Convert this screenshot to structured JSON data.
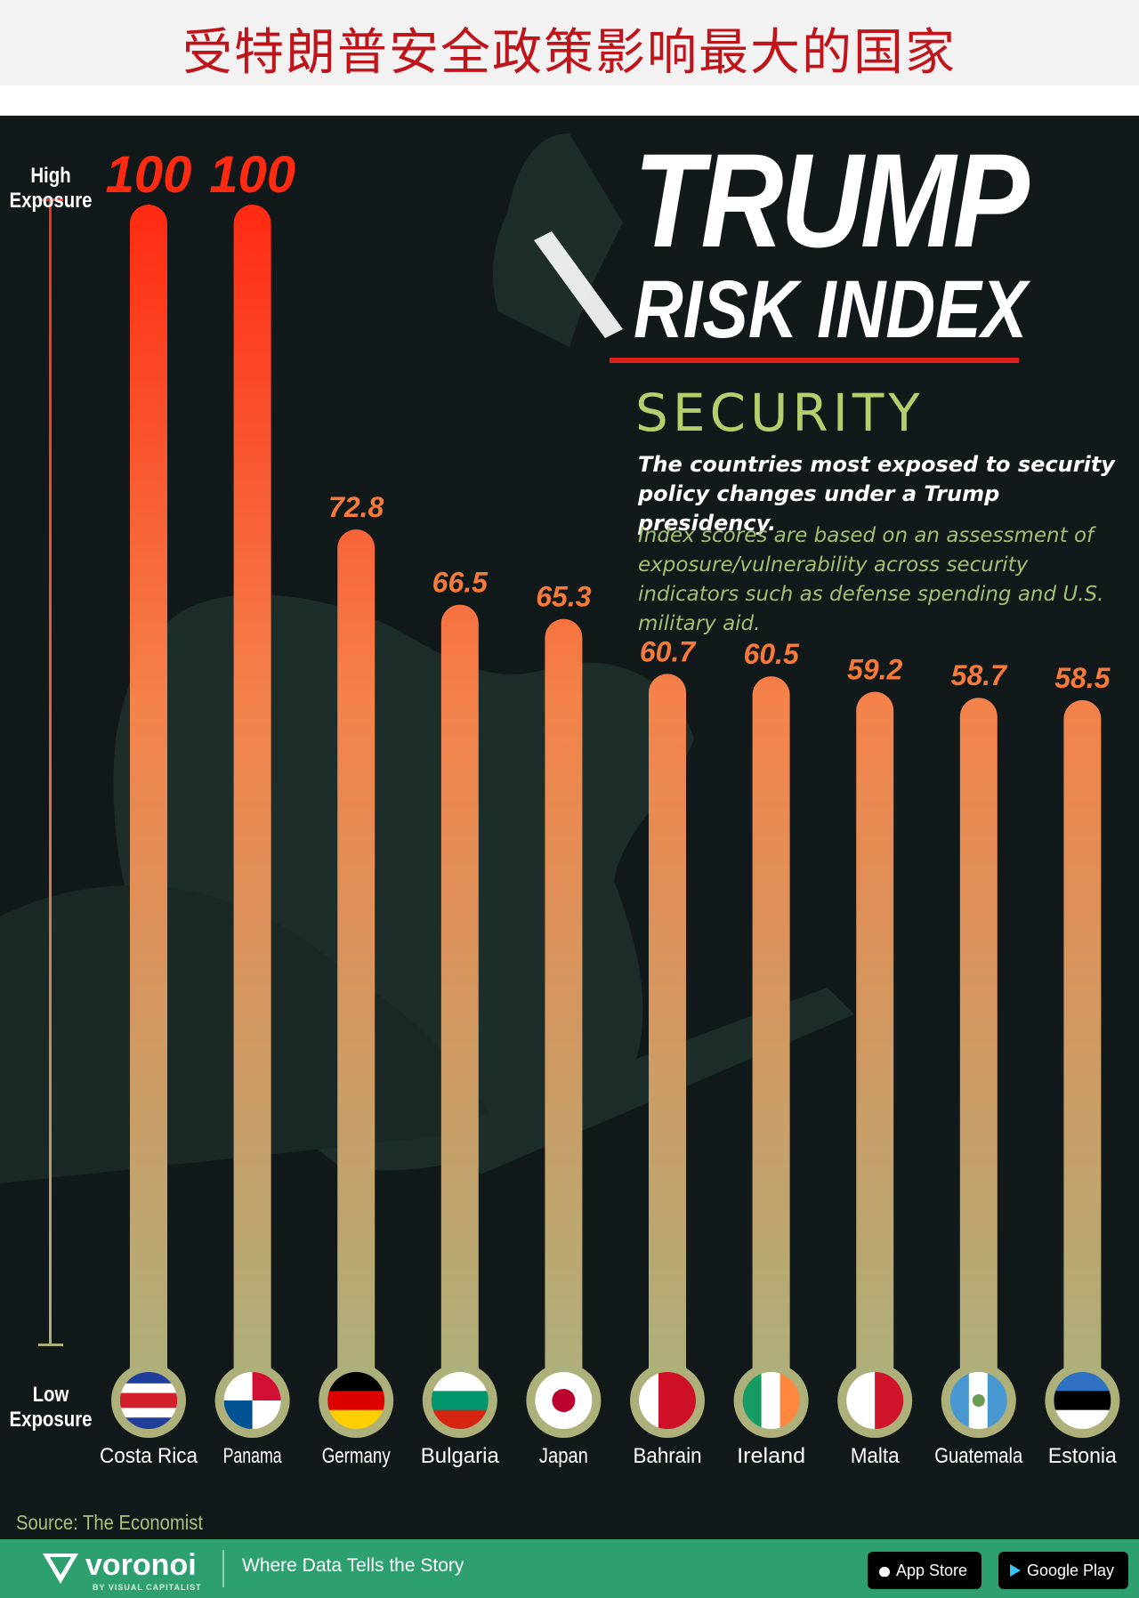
{
  "header": {
    "title": "受特朗普安全政策影响最大的国家"
  },
  "infographic": {
    "logo_line1": "TRUMP",
    "logo_line2": "RISK INDEX",
    "section": "SECURITY",
    "subtitle": "The countries most exposed to security policy changes under a Trump presidency.",
    "note": "Index scores are based on an assessment of exposure/vulnerability across security indicators such as defense spending and U.S. military aid.",
    "high_label": "High Exposure",
    "low_label": "Low Exposure",
    "source": "Source: The Economist"
  },
  "chart_data": {
    "type": "bar",
    "categories": [
      "Costa Rica",
      "Panama",
      "Germany",
      "Bulgaria",
      "Japan",
      "Bahrain",
      "Ireland",
      "Malta",
      "Guatemala",
      "Estonia"
    ],
    "values": [
      100,
      100,
      72.8,
      66.5,
      65.3,
      60.7,
      60.5,
      59.2,
      58.7,
      58.5
    ],
    "value_labels": [
      "100",
      "100",
      "72.8",
      "66.5",
      "65.3",
      "60.7",
      "60.5",
      "59.2",
      "58.7",
      "58.5"
    ],
    "ylim": [
      0,
      100
    ],
    "grid": false,
    "colors": {
      "high": "#ff2a12",
      "mid": "#f4824a",
      "low": "#aeb07a",
      "label_high": "#ff2a12",
      "label": "#f67a3a"
    }
  },
  "footer": {
    "brand": "voronoi",
    "brand_sub": "BY VISUAL CAPITALIST",
    "tagline": "Where Data Tells the Story",
    "app_store": "App Store",
    "google_play": "Google Play"
  }
}
